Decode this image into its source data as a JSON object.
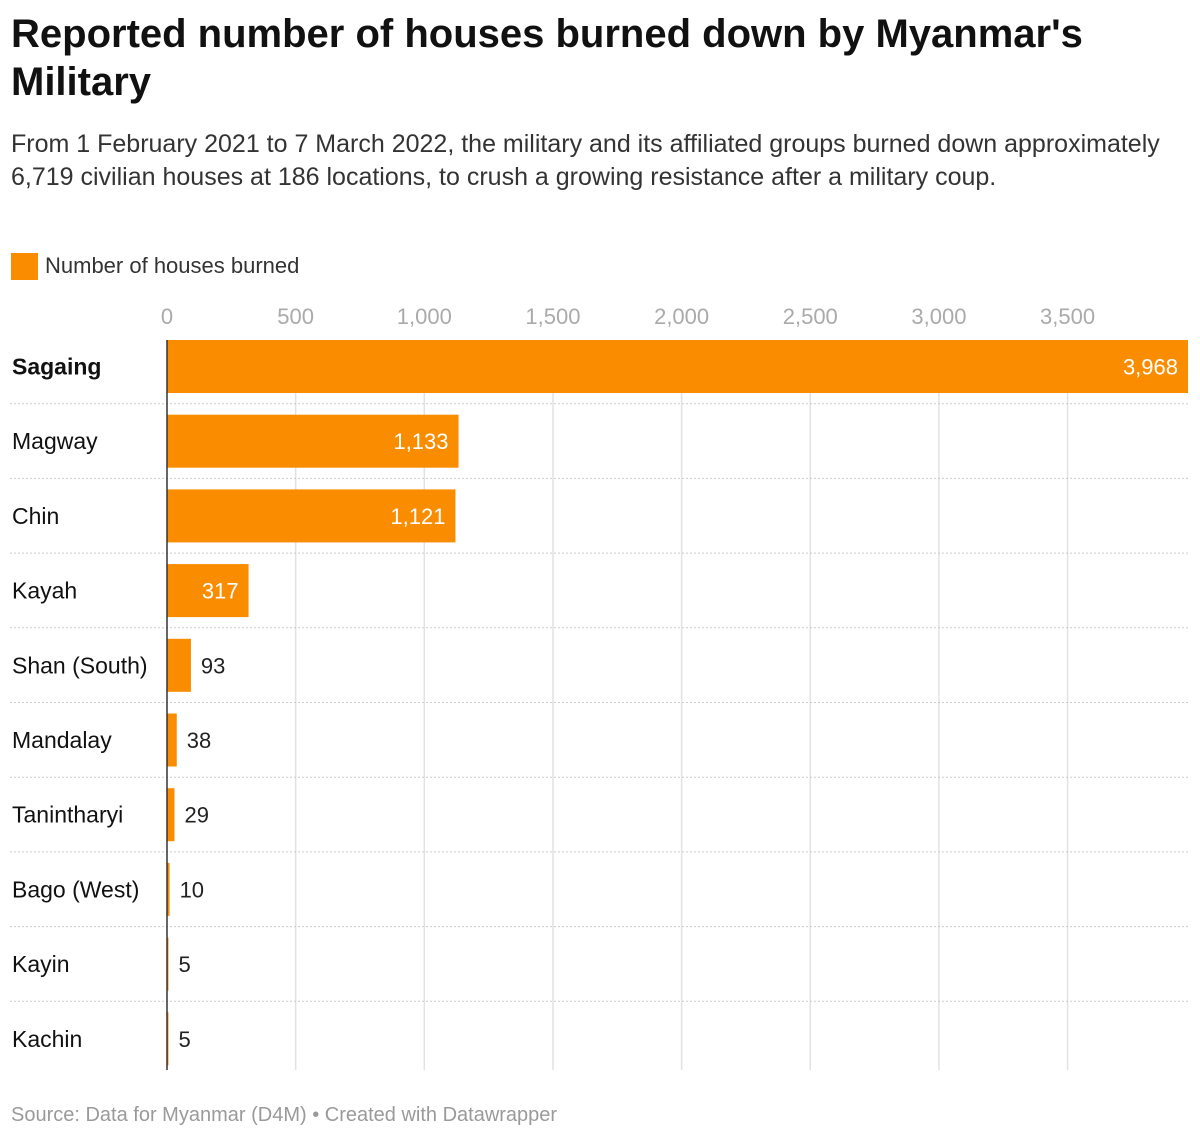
{
  "title": "Reported number of houses burned down by Myanmar's Military",
  "subtitle": "From 1 February 2021 to 7 March 2022, the military and its affiliated groups burned down approximately 6,719 civilian houses at 186 locations, to crush a growing resistance after a military coup.",
  "source": "Source: Data for Myanmar (D4M) • Created with Datawrapper",
  "colors": {
    "bar": "#fa8c00",
    "bar_label_inside": "#ffffff",
    "bar_label_outside": "#222222",
    "grid": "#e2e2e2",
    "row_divider": "#cccccc",
    "tick_label": "#aaaaaa",
    "axis_line": "#333333"
  },
  "chart_data": {
    "type": "bar",
    "orientation": "horizontal",
    "categories": [
      "Sagaing",
      "Magway",
      "Chin",
      "Kayah",
      "Shan (South)",
      "Mandalay",
      "Tanintharyi",
      "Bago (West)",
      "Kayin",
      "Kachin"
    ],
    "highlighted_category": "Sagaing",
    "series": [
      {
        "name": "Number of houses burned",
        "values": [
          3968,
          1133,
          1121,
          317,
          93,
          38,
          29,
          10,
          5,
          5
        ],
        "value_labels": [
          "3,968",
          "1,133",
          "1,121",
          "317",
          "93",
          "38",
          "29",
          "10",
          "5",
          "5"
        ]
      }
    ],
    "xlim": [
      0,
      3968
    ],
    "x_ticks": [
      0,
      500,
      1000,
      1500,
      2000,
      2500,
      3000,
      3500
    ],
    "x_tick_labels": [
      "0",
      "500",
      "1,000",
      "1,500",
      "2,000",
      "2,500",
      "3,000",
      "3,500"
    ],
    "grid": true,
    "legend_position": "top-left"
  }
}
